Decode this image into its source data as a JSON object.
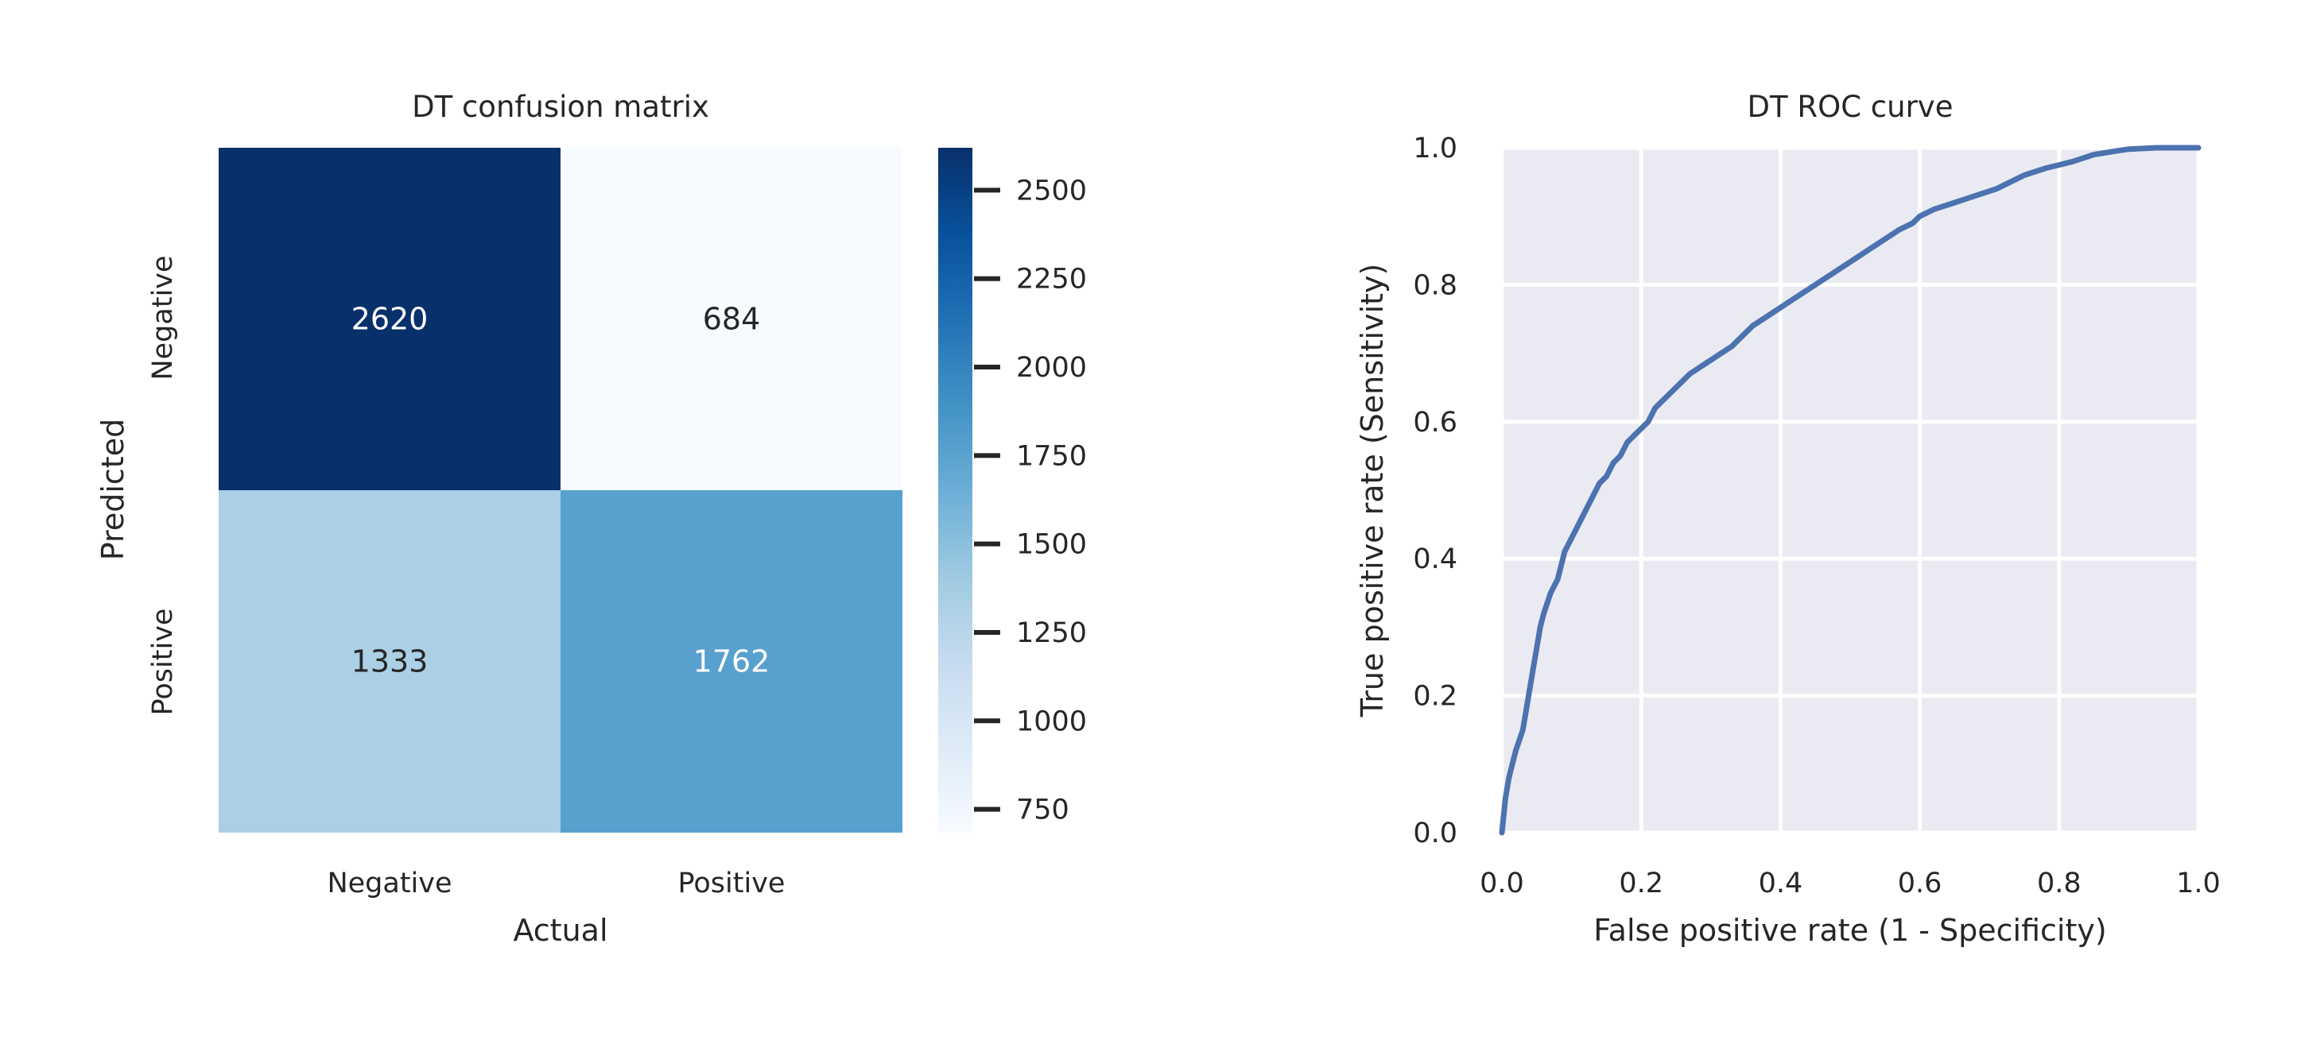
{
  "chart_data": [
    {
      "type": "heatmap",
      "title": "DT confusion matrix",
      "xlabel": "Actual",
      "ylabel": "Predicted",
      "x_categories": [
        "Negative",
        "Positive"
      ],
      "y_categories": [
        "Negative",
        "Positive"
      ],
      "values": [
        [
          2620,
          684
        ],
        [
          1333,
          1762
        ]
      ],
      "colormap": "Blues",
      "value_range": [
        684,
        2620
      ],
      "colorbar_ticks": [
        750,
        1000,
        1250,
        1500,
        1750,
        2000,
        2250,
        2500
      ]
    },
    {
      "type": "line",
      "title": "DT ROC curve",
      "xlabel": "False positive rate (1 - Specificity)",
      "ylabel": "True positive rate (Sensitivity)",
      "xlim": [
        0.0,
        1.0
      ],
      "ylim": [
        0.0,
        1.0
      ],
      "xticks": [
        "0.0",
        "0.2",
        "0.4",
        "0.6",
        "0.8",
        "1.0"
      ],
      "yticks": [
        "0.0",
        "0.2",
        "0.4",
        "0.6",
        "0.8",
        "1.0"
      ],
      "grid": true,
      "background": "#eaeaf2",
      "line_color": "#4c72b0",
      "series": [
        {
          "x": [
            0.0,
            0.005,
            0.01,
            0.015,
            0.02,
            0.03,
            0.035,
            0.04,
            0.045,
            0.05,
            0.055,
            0.06,
            0.07,
            0.08,
            0.085,
            0.09,
            0.1,
            0.105,
            0.115,
            0.13,
            0.14,
            0.15,
            0.16,
            0.17,
            0.18,
            0.19,
            0.2,
            0.21,
            0.22,
            0.23,
            0.25,
            0.27,
            0.3,
            0.33,
            0.36,
            0.39,
            0.42,
            0.45,
            0.48,
            0.51,
            0.54,
            0.57,
            0.59,
            0.6,
            0.62,
            0.65,
            0.68,
            0.71,
            0.75,
            0.78,
            0.8,
            0.82,
            0.85,
            0.88,
            0.9,
            0.94,
            0.97,
            1.0
          ],
          "y": [
            0.0,
            0.05,
            0.08,
            0.1,
            0.12,
            0.15,
            0.18,
            0.21,
            0.24,
            0.27,
            0.3,
            0.32,
            0.35,
            0.37,
            0.39,
            0.41,
            0.43,
            0.44,
            0.46,
            0.49,
            0.51,
            0.52,
            0.54,
            0.55,
            0.57,
            0.58,
            0.59,
            0.6,
            0.62,
            0.63,
            0.65,
            0.67,
            0.69,
            0.71,
            0.74,
            0.76,
            0.78,
            0.8,
            0.82,
            0.84,
            0.86,
            0.88,
            0.89,
            0.9,
            0.91,
            0.92,
            0.93,
            0.94,
            0.96,
            0.97,
            0.975,
            0.98,
            0.99,
            0.995,
            0.998,
            1.0,
            1.0,
            1.0
          ]
        }
      ]
    }
  ]
}
